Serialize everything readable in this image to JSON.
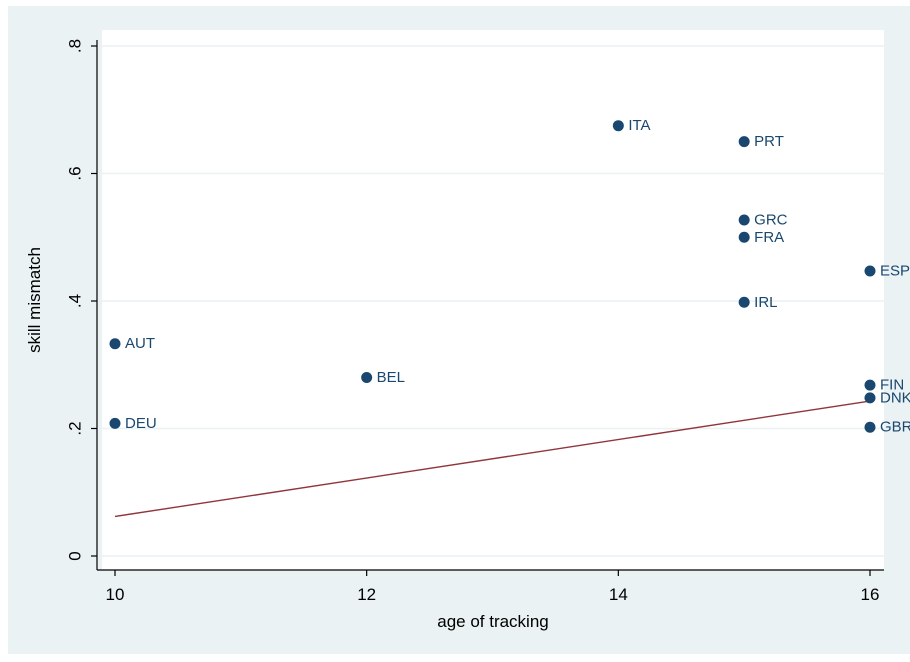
{
  "chart_data": {
    "type": "scatter",
    "xlabel": "age of tracking",
    "ylabel": "skill mismatch",
    "xlim": [
      10,
      16
    ],
    "ylim": [
      0,
      0.8
    ],
    "xticks": [
      10,
      12,
      14,
      16
    ],
    "xtick_labels": [
      "10",
      "12",
      "14",
      "16"
    ],
    "yticks": [
      0,
      0.2,
      0.4,
      0.6,
      0.8
    ],
    "ytick_labels": [
      "0",
      ".2",
      ".4",
      ".6",
      ".8"
    ],
    "grid": true,
    "points": [
      {
        "label": "AUT",
        "x": 10,
        "y": 0.333
      },
      {
        "label": "DEU",
        "x": 10,
        "y": 0.208
      },
      {
        "label": "BEL",
        "x": 12,
        "y": 0.28
      },
      {
        "label": "ITA",
        "x": 14,
        "y": 0.675
      },
      {
        "label": "PRT",
        "x": 15,
        "y": 0.65
      },
      {
        "label": "GRC",
        "x": 15,
        "y": 0.527
      },
      {
        "label": "FRA",
        "x": 15,
        "y": 0.5
      },
      {
        "label": "IRL",
        "x": 15,
        "y": 0.398
      },
      {
        "label": "ESP",
        "x": 16,
        "y": 0.447
      },
      {
        "label": "FIN",
        "x": 16,
        "y": 0.268
      },
      {
        "label": "DNK",
        "x": 16,
        "y": 0.248
      },
      {
        "label": "GBR",
        "x": 16,
        "y": 0.202
      }
    ],
    "fit_line": {
      "x": [
        10,
        16
      ],
      "y": [
        0.062,
        0.243
      ]
    },
    "colors": {
      "outer_background": "#eaf2f3",
      "plot_background": "#ffffff",
      "marker": "#1a476f",
      "fit_line": "#90353b",
      "grid": "#eaf2f3",
      "axis": "#000000"
    }
  }
}
